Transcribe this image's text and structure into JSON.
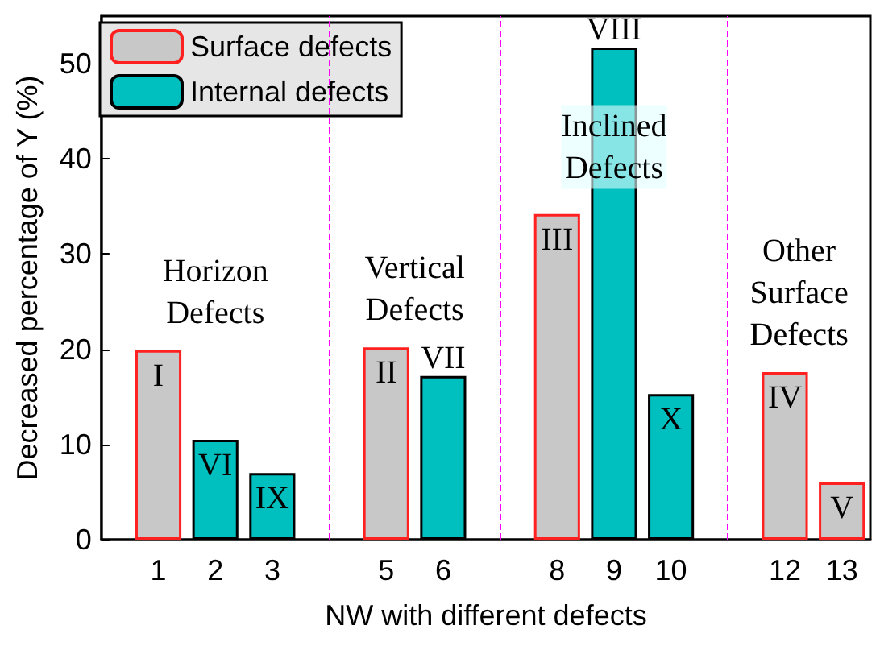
{
  "chart_data": {
    "type": "bar",
    "xlabel": "NW with different defects",
    "ylabel": "Decreased percentage of Y (%)",
    "xlim": [
      0,
      13.5
    ],
    "xticks": [
      1,
      2,
      3,
      5,
      6,
      8,
      9,
      10,
      12,
      13
    ],
    "ylim": [
      0,
      55
    ],
    "yticks": [
      0,
      10,
      20,
      30,
      40,
      50
    ],
    "series": [
      {
        "name": "Surface defects",
        "color": "#c8c8c8",
        "x": [
          1,
          5,
          8,
          12,
          13
        ],
        "values": [
          19.9,
          20.2,
          34.2,
          17.6,
          6.0
        ],
        "value_labels": [
          "I",
          "II",
          "III",
          "IV",
          "V"
        ]
      },
      {
        "name": "Internal defects",
        "color": "#00bfbf",
        "x": [
          2,
          3,
          6,
          9,
          10
        ],
        "values": [
          10.5,
          7.0,
          17.2,
          51.7,
          15.3
        ],
        "value_labels": [
          "VI",
          "IX",
          "VII",
          "VIII",
          "X"
        ]
      }
    ],
    "ref_lines": [
      {
        "axis": "x",
        "value": 4,
        "color": "#ff00ff",
        "line_style": "dashed"
      },
      {
        "axis": "x",
        "value": 7,
        "color": "#ff00ff",
        "line_style": "dashed"
      },
      {
        "axis": "x",
        "value": 11,
        "color": "#ff00ff",
        "line_style": "dashed"
      }
    ],
    "annotations": [
      "Horizon Defects",
      "Vertical Defects",
      "Inclined Defects",
      "Other Surface Defects"
    ],
    "legend": "top left",
    "grid": false
  }
}
